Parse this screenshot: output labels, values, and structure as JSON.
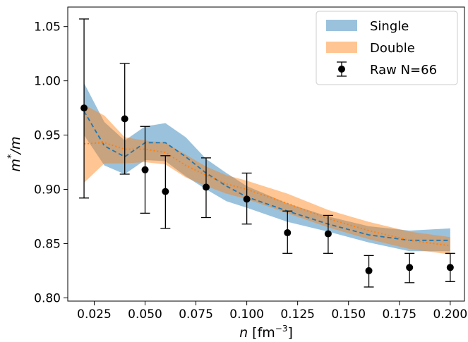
{
  "chart_data": {
    "type": "line",
    "xlabel_var": "n",
    "xlabel_unit": "[fm",
    "xlabel_exp": "−3",
    "xlabel_close": "]",
    "ylabel_main": "m",
    "ylabel_sup": "*",
    "ylabel_tail": "/m",
    "xlim": [
      0.012,
      0.207
    ],
    "ylim": [
      0.797,
      1.068
    ],
    "xticks": [
      "0.025",
      "0.050",
      "0.075",
      "0.100",
      "0.125",
      "0.150",
      "0.175",
      "0.200"
    ],
    "xtick_values": [
      0.025,
      0.05,
      0.075,
      0.1,
      0.125,
      0.15,
      0.175,
      0.2
    ],
    "yticks": [
      "0.80",
      "0.85",
      "0.90",
      "0.95",
      "1.00",
      "1.05"
    ],
    "ytick_values": [
      0.8,
      0.85,
      0.9,
      0.95,
      1.0,
      1.05
    ],
    "grid": false,
    "legend_position": "top-right",
    "series": [
      {
        "name": "Single",
        "kind": "band",
        "band_color": "#1f77b4",
        "line_color": "#1f77b4",
        "line_style": "dashed",
        "x": [
          0.02,
          0.03,
          0.04,
          0.05,
          0.06,
          0.07,
          0.08,
          0.09,
          0.1,
          0.12,
          0.14,
          0.16,
          0.18,
          0.2
        ],
        "center": [
          0.972,
          0.94,
          0.93,
          0.943,
          0.943,
          0.93,
          0.915,
          0.903,
          0.893,
          0.88,
          0.868,
          0.858,
          0.853,
          0.853
        ],
        "upper": [
          0.998,
          0.962,
          0.945,
          0.958,
          0.961,
          0.948,
          0.928,
          0.915,
          0.903,
          0.887,
          0.875,
          0.866,
          0.862,
          0.864
        ],
        "lower": [
          0.95,
          0.922,
          0.914,
          0.927,
          0.926,
          0.912,
          0.9,
          0.889,
          0.883,
          0.87,
          0.861,
          0.851,
          0.843,
          0.843
        ]
      },
      {
        "name": "Double",
        "kind": "band",
        "band_color": "#ff7f0e",
        "line_color": "#ff7f0e",
        "line_style": "dotted",
        "x": [
          0.02,
          0.03,
          0.04,
          0.05,
          0.06,
          0.07,
          0.08,
          0.09,
          0.1,
          0.12,
          0.14,
          0.16,
          0.18,
          0.2
        ],
        "center": [
          0.942,
          0.943,
          0.937,
          0.937,
          0.934,
          0.922,
          0.913,
          0.905,
          0.9,
          0.887,
          0.873,
          0.862,
          0.853,
          0.848
        ],
        "upper": [
          0.978,
          0.968,
          0.948,
          0.945,
          0.943,
          0.932,
          0.921,
          0.913,
          0.908,
          0.896,
          0.881,
          0.87,
          0.861,
          0.856
        ],
        "lower": [
          0.906,
          0.924,
          0.924,
          0.925,
          0.923,
          0.911,
          0.903,
          0.896,
          0.891,
          0.878,
          0.865,
          0.854,
          0.845,
          0.84
        ]
      },
      {
        "name": "Raw N=66",
        "kind": "errorbar",
        "color": "#000000",
        "x": [
          0.02,
          0.04,
          0.05,
          0.06,
          0.08,
          0.1,
          0.12,
          0.14,
          0.16,
          0.18,
          0.2
        ],
        "y": [
          0.975,
          0.965,
          0.918,
          0.898,
          0.902,
          0.891,
          0.86,
          0.859,
          0.825,
          0.828,
          0.828
        ],
        "yerr_low": [
          0.892,
          0.914,
          0.878,
          0.864,
          0.874,
          0.868,
          0.841,
          0.841,
          0.81,
          0.814,
          0.815
        ],
        "yerr_high": [
          1.057,
          1.016,
          0.958,
          0.931,
          0.929,
          0.915,
          0.88,
          0.876,
          0.839,
          0.841,
          0.841
        ]
      }
    ]
  }
}
